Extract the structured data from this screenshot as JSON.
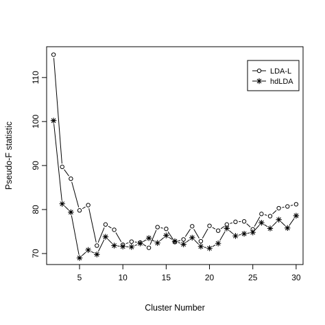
{
  "chart_data": {
    "type": "line",
    "title": "",
    "xlabel": "Cluster Number",
    "ylabel": "Pseudo-F statistic",
    "xlim": [
      1.2,
      30.8
    ],
    "ylim": [
      67.5,
      117
    ],
    "xticks": [
      5,
      10,
      15,
      20,
      25,
      30
    ],
    "yticks": [
      70,
      80,
      90,
      100,
      110
    ],
    "grid": false,
    "legend_position": "top-right",
    "x": [
      2,
      3,
      4,
      5,
      6,
      7,
      8,
      9,
      10,
      11,
      12,
      13,
      14,
      15,
      16,
      17,
      18,
      19,
      20,
      21,
      22,
      23,
      24,
      25,
      26,
      27,
      28,
      29,
      30
    ],
    "series": [
      {
        "name": "LDA-L",
        "marker": "circle",
        "values": [
          115.2,
          89.7,
          87.0,
          79.8,
          81.0,
          71.8,
          76.6,
          75.4,
          72.0,
          72.7,
          72.5,
          71.3,
          76.0,
          75.6,
          72.6,
          73.2,
          76.2,
          72.8,
          76.3,
          75.2,
          76.6,
          77.2,
          77.3,
          75.5,
          79.0,
          78.5,
          80.3,
          80.7,
          81.2
        ]
      },
      {
        "name": "hdLDA",
        "marker": "asterisk",
        "values": [
          100.2,
          81.3,
          79.4,
          69.0,
          70.8,
          69.8,
          73.8,
          71.8,
          71.6,
          71.5,
          72.3,
          73.5,
          72.4,
          74.1,
          72.8,
          72.1,
          73.6,
          71.6,
          71.2,
          72.3,
          75.7,
          74.0,
          74.5,
          74.8,
          77.0,
          75.7,
          77.7,
          75.8,
          78.6
        ]
      }
    ]
  }
}
